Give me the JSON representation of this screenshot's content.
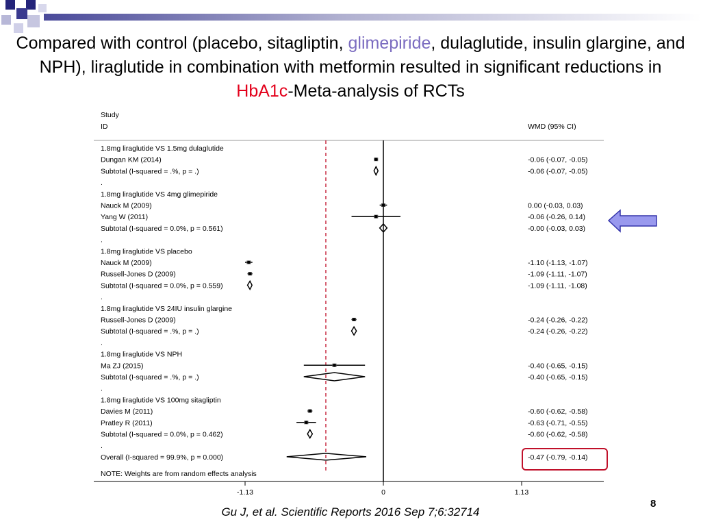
{
  "slide": {
    "title_part1": "Compared with control (placebo, sitagliptin, ",
    "title_highlight1": "glimepiride",
    "title_part2": ", dulaglutide, insulin glargine, and NPH), liraglutide in combination with metformin resulted in significant reductions in ",
    "title_highlight2": "HbA1c",
    "title_part3": "-Meta-analysis of RCTs",
    "citation": "Gu J, et al. Scientific Reports 2016 Sep 7;6:32714",
    "page_number": "8",
    "colors": {
      "highlight_purple": "#7b6cc0",
      "highlight_red": "#e3001b",
      "arrow_fill": "#9999ee",
      "arrow_stroke": "#3333aa",
      "box_stroke": "#c0102a"
    }
  },
  "chart_data": {
    "type": "forest",
    "header_left_1": "Study",
    "header_left_2": "ID",
    "header_right": "WMD (95% CI)",
    "xlim": [
      -1.13,
      1.13
    ],
    "ticks": [
      {
        "value": -1.13,
        "label": "-1.13"
      },
      {
        "value": 0,
        "label": "0"
      },
      {
        "value": 1.13,
        "label": "1.13"
      }
    ],
    "overall_estimate": -0.47,
    "note": "NOTE: Weights are from random effects analysis",
    "rows": [
      {
        "kind": "group",
        "label": "1.8mg liraglutide VS 1.5mg dulaglutide"
      },
      {
        "kind": "study",
        "label": "Dungan KM (2014)",
        "est": -0.06,
        "lo": -0.07,
        "hi": -0.05,
        "ci": "-0.06 (-0.07, -0.05)"
      },
      {
        "kind": "subtotal",
        "label": "Subtotal  (I-squared = .%, p = .)",
        "est": -0.06,
        "lo": -0.07,
        "hi": -0.05,
        "ci": "-0.06 (-0.07, -0.05)"
      },
      {
        "kind": "dot",
        "label": "."
      },
      {
        "kind": "group",
        "label": "1.8mg liraglutide VS 4mg glimepiride"
      },
      {
        "kind": "study",
        "label": "Nauck M (2009)",
        "est": 0.0,
        "lo": -0.03,
        "hi": 0.03,
        "ci": "0.00 (-0.03, 0.03)"
      },
      {
        "kind": "study",
        "label": "Yang W (2011)",
        "est": -0.06,
        "lo": -0.26,
        "hi": 0.14,
        "ci": "-0.06 (-0.26, 0.14)"
      },
      {
        "kind": "subtotal",
        "label": "Subtotal  (I-squared = 0.0%, p = 0.561)",
        "est": 0.0,
        "lo": -0.03,
        "hi": 0.03,
        "ci": "-0.00 (-0.03, 0.03)"
      },
      {
        "kind": "dot",
        "label": "."
      },
      {
        "kind": "group",
        "label": "1.8mg liraglutide VS placebo"
      },
      {
        "kind": "study",
        "label": "Nauck M (2009)",
        "est": -1.1,
        "lo": -1.13,
        "hi": -1.07,
        "ci": "-1.10 (-1.13, -1.07)"
      },
      {
        "kind": "study",
        "label": "Russell-Jones D (2009)",
        "est": -1.09,
        "lo": -1.11,
        "hi": -1.07,
        "ci": "-1.09 (-1.11, -1.07)"
      },
      {
        "kind": "subtotal",
        "label": "Subtotal  (I-squared = 0.0%, p = 0.559)",
        "est": -1.09,
        "lo": -1.11,
        "hi": -1.08,
        "ci": "-1.09 (-1.11, -1.08)"
      },
      {
        "kind": "dot",
        "label": "."
      },
      {
        "kind": "group",
        "label": "1.8mg liraglutide VS 24IU insulin glargine"
      },
      {
        "kind": "study",
        "label": "Russell-Jones D (2009)",
        "est": -0.24,
        "lo": -0.26,
        "hi": -0.22,
        "ci": "-0.24 (-0.26, -0.22)"
      },
      {
        "kind": "subtotal",
        "label": "Subtotal  (I-squared = .%, p = .)",
        "est": -0.24,
        "lo": -0.26,
        "hi": -0.22,
        "ci": "-0.24 (-0.26, -0.22)"
      },
      {
        "kind": "dot",
        "label": "."
      },
      {
        "kind": "group",
        "label": "1.8mg liraglutide VS NPH"
      },
      {
        "kind": "study",
        "label": "Ma ZJ (2015)",
        "est": -0.4,
        "lo": -0.65,
        "hi": -0.15,
        "ci": "-0.40 (-0.65, -0.15)"
      },
      {
        "kind": "subtotal",
        "label": "Subtotal  (I-squared = .%, p = .)",
        "est": -0.4,
        "lo": -0.65,
        "hi": -0.15,
        "ci": "-0.40 (-0.65, -0.15)"
      },
      {
        "kind": "dot",
        "label": "."
      },
      {
        "kind": "group",
        "label": "1.8mg liraglutide VS 100mg sitagliptin"
      },
      {
        "kind": "study",
        "label": "Davies M (2011)",
        "est": -0.6,
        "lo": -0.62,
        "hi": -0.58,
        "ci": "-0.60 (-0.62, -0.58)"
      },
      {
        "kind": "study",
        "label": "Pratley R (2011)",
        "est": -0.63,
        "lo": -0.71,
        "hi": -0.55,
        "ci": "-0.63 (-0.71, -0.55)"
      },
      {
        "kind": "subtotal",
        "label": "Subtotal  (I-squared = 0.0%, p = 0.462)",
        "est": -0.6,
        "lo": -0.62,
        "hi": -0.58,
        "ci": "-0.60 (-0.62, -0.58)"
      },
      {
        "kind": "dot",
        "label": "."
      },
      {
        "kind": "overall",
        "label": "Overall  (I-squared = 99.9%, p = 0.000)",
        "est": -0.47,
        "lo": -0.79,
        "hi": -0.14,
        "ci": "-0.47 (-0.79, -0.14)"
      }
    ]
  }
}
